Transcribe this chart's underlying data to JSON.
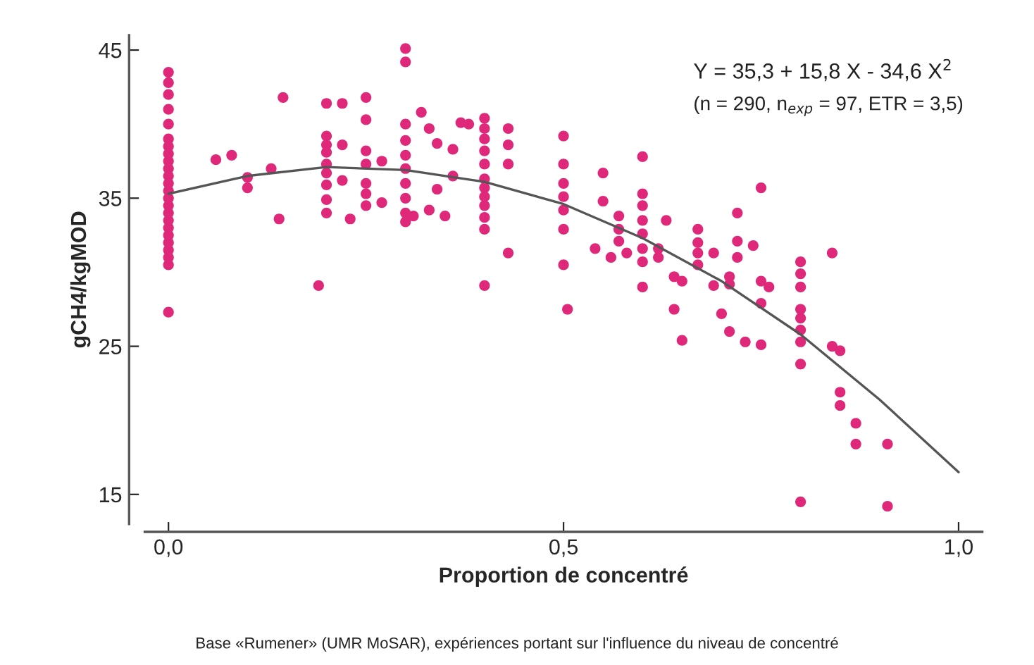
{
  "chart_data": {
    "type": "scatter",
    "xlabel": "Proportion de concentré",
    "ylabel": "gCH4/kgMOD",
    "annotations": [
      "Y = 35,3 + 15,8 X - 34,6 X$^{2}$",
      "(n = 290, n$_{exp}$ = 97, ETR = 3,5)",
      "Base «Rumener» (UMR MoSAR), expériences portant sur l'influence du niveau de concentré"
    ],
    "xlim": [
      -0.03,
      1.03
    ],
    "ylim": [
      13,
      46
    ],
    "xticks": [
      {
        "value": 0,
        "label": "0,0"
      },
      {
        "value": 0.5,
        "label": "0,5"
      },
      {
        "value": 1,
        "label": "1,0"
      }
    ],
    "yticks": [
      15,
      25,
      35,
      45
    ],
    "grid": false,
    "legend": false,
    "marker": "circle",
    "series": [
      {
        "color": "#e0287a",
        "x": [
          0,
          0,
          0,
          0,
          0,
          0,
          0,
          0,
          0,
          0,
          0,
          0,
          0,
          0,
          0,
          0,
          0,
          0,
          0,
          0,
          0,
          0,
          0,
          0,
          0.06,
          0.08,
          0.1,
          0.1,
          0.13,
          0.145,
          0.14,
          0.19,
          0.2,
          0.2,
          0.2,
          0.2,
          0.2,
          0.2,
          0.2,
          0.2,
          0.2,
          0.22,
          0.22,
          0.22,
          0.23,
          0.25,
          0.25,
          0.25,
          0.25,
          0.25,
          0.25,
          0.25,
          0.27,
          0.27,
          0.3,
          0.3,
          0.3,
          0.3,
          0.3,
          0.3,
          0.3,
          0.3,
          0.3,
          0.3,
          0.31,
          0.32,
          0.33,
          0.33,
          0.34,
          0.34,
          0.35,
          0.36,
          0.36,
          0.37,
          0.38,
          0.4,
          0.4,
          0.4,
          0.4,
          0.4,
          0.4,
          0.4,
          0.4,
          0.4,
          0.4,
          0.4,
          0.4,
          0.43,
          0.43,
          0.43,
          0.43,
          0.5,
          0.5,
          0.5,
          0.5,
          0.5,
          0.5,
          0.5,
          0.505,
          0.55,
          0.55,
          0.54,
          0.56,
          0.57,
          0.57,
          0.57,
          0.58,
          0.6,
          0.6,
          0.6,
          0.6,
          0.6,
          0.6,
          0.6,
          0.6,
          0.62,
          0.62,
          0.63,
          0.64,
          0.65,
          0.64,
          0.65,
          0.67,
          0.67,
          0.67,
          0.67,
          0.69,
          0.69,
          0.7,
          0.71,
          0.71,
          0.71,
          0.72,
          0.72,
          0.72,
          0.73,
          0.74,
          0.75,
          0.75,
          0.76,
          0.75,
          0.75,
          0.8,
          0.8,
          0.8,
          0.8,
          0.8,
          0.8,
          0.8,
          0.8,
          0.8,
          0.84,
          0.84,
          0.85,
          0.85,
          0.85,
          0.87,
          0.87,
          0.91,
          0.91
        ],
        "values": [
          43.5,
          42.8,
          42,
          41,
          40,
          39,
          38.5,
          38,
          37.5,
          37,
          36.5,
          36,
          35.5,
          35,
          34.5,
          34,
          33.5,
          33,
          32.5,
          32,
          31.5,
          31,
          30.5,
          27.3,
          37.6,
          37.9,
          36.4,
          35.7,
          37.0,
          41.8,
          33.6,
          29.1,
          41.4,
          39.2,
          38.6,
          38.1,
          37.3,
          36.7,
          35.9,
          34.9,
          34.0,
          41.4,
          38.6,
          36.2,
          33.6,
          41.8,
          40.3,
          38.2,
          37.3,
          36.0,
          35.3,
          34.5,
          37.5,
          34.7,
          45.1,
          44.2,
          40.0,
          38.9,
          37.9,
          37.0,
          36.0,
          35.0,
          34.0,
          33.4,
          33.8,
          40.8,
          39.7,
          34.2,
          38.7,
          35.6,
          33.8,
          38.3,
          36.5,
          40.1,
          40.0,
          40.4,
          39.7,
          39.0,
          38.2,
          37.3,
          36.3,
          35.7,
          35.1,
          34.5,
          33.7,
          32.9,
          29.1,
          39.7,
          38.6,
          37.3,
          31.3,
          39.2,
          37.3,
          36.0,
          35.1,
          34.2,
          32.9,
          30.5,
          27.5,
          36.7,
          34.8,
          31.6,
          31.0,
          33.8,
          32.9,
          32.1,
          31.3,
          37.8,
          35.3,
          34.5,
          33.5,
          32.6,
          31.6,
          30.7,
          29.0,
          31.6,
          31.0,
          33.5,
          29.7,
          29.4,
          27.5,
          25.4,
          32.9,
          32.0,
          31.3,
          30.5,
          31.3,
          29.1,
          27.2,
          29.7,
          29.2,
          26.0,
          34.0,
          32.1,
          31.0,
          25.3,
          31.8,
          35.7,
          29.4,
          29.0,
          27.9,
          25.1,
          30.7,
          29.9,
          29.0,
          27.5,
          26.9,
          26.1,
          25.3,
          23.8,
          14.5,
          31.3,
          25.0,
          24.7,
          21.9,
          21.0,
          19.8,
          18.4,
          18.4,
          14.2
        ]
      },
      {
        "type": "line",
        "color": "#555555",
        "marker": "none",
        "x": [
          0,
          0.1,
          0.2,
          0.3,
          0.4,
          0.5,
          0.6,
          0.7,
          0.8,
          0.9,
          1.0
        ],
        "values": [
          35.3,
          36.5,
          37.1,
          36.9,
          36.1,
          34.6,
          32.3,
          29.4,
          25.8,
          21.4,
          16.5
        ]
      }
    ]
  }
}
